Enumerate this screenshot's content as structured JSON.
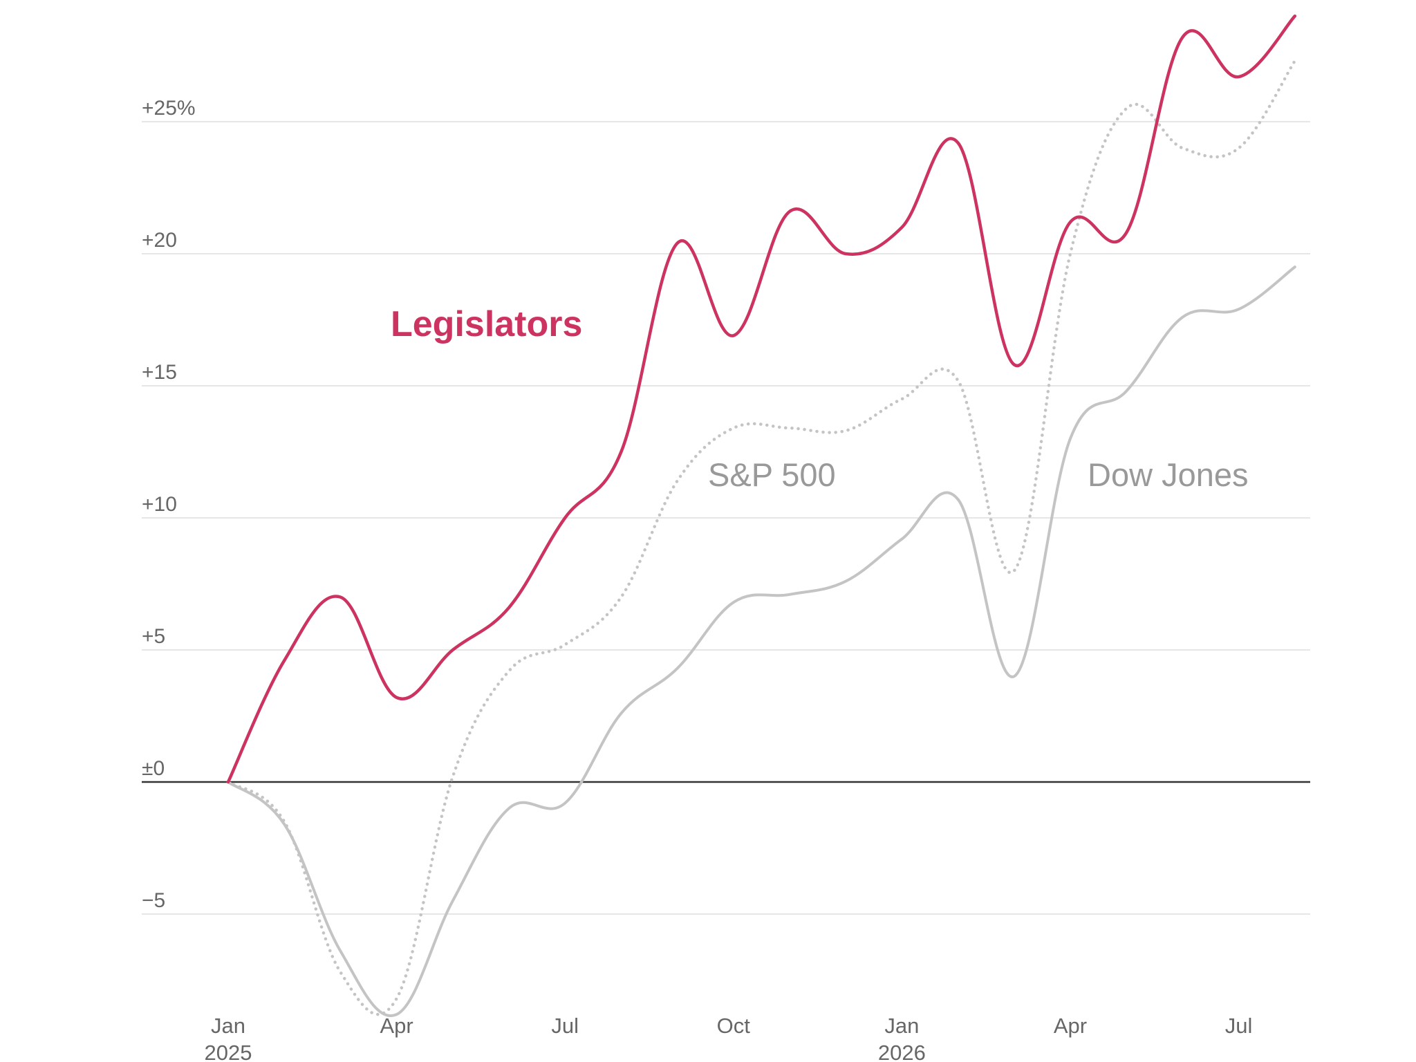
{
  "colors": {
    "legislators": "#cc3361",
    "sp500": "#c4c4c4",
    "dow": "#c4c4c4",
    "label_gray": "#999999",
    "gridline": "#e6e6e6",
    "zero_line": "#333333",
    "tick_text": "#666666"
  },
  "chart_data": {
    "type": "line",
    "title": "",
    "xlabel": "",
    "ylabel": "",
    "ylim": [
      -9,
      29
    ],
    "xlim": [
      "2025-01",
      "2026-08"
    ],
    "grid": true,
    "legend": "direct labels on lines",
    "y_ticks": [
      {
        "value": 25,
        "label": "+25%"
      },
      {
        "value": 20,
        "label": "+20"
      },
      {
        "value": 15,
        "label": "+15"
      },
      {
        "value": 10,
        "label": "+10"
      },
      {
        "value": 5,
        "label": "+5"
      },
      {
        "value": 0,
        "label": "±0"
      },
      {
        "value": -5,
        "label": "−5"
      }
    ],
    "x_ticks": [
      {
        "date": "2025-01",
        "label": "Jan",
        "sublabel": "2025"
      },
      {
        "date": "2025-04",
        "label": "Apr",
        "sublabel": ""
      },
      {
        "date": "2025-07",
        "label": "Jul",
        "sublabel": ""
      },
      {
        "date": "2025-10",
        "label": "Oct",
        "sublabel": ""
      },
      {
        "date": "2026-01",
        "label": "Jan",
        "sublabel": "2026"
      },
      {
        "date": "2026-04",
        "label": "Apr",
        "sublabel": ""
      },
      {
        "date": "2026-07",
        "label": "Jul",
        "sublabel": ""
      }
    ],
    "series": [
      {
        "name": "Legislators",
        "style": "solid",
        "color": "#cc3361",
        "points": [
          [
            "2025-01",
            0.0
          ],
          [
            "2025-02",
            4.6
          ],
          [
            "2025-03",
            7.0
          ],
          [
            "2025-04",
            3.2
          ],
          [
            "2025-05",
            5.0
          ],
          [
            "2025-06",
            6.6
          ],
          [
            "2025-07",
            10.0
          ],
          [
            "2025-08",
            12.5
          ],
          [
            "2025-09",
            20.4
          ],
          [
            "2025-10",
            16.9
          ],
          [
            "2025-11",
            21.6
          ],
          [
            "2025-12",
            20.0
          ],
          [
            "2026-01",
            21.0
          ],
          [
            "2026-02",
            24.2
          ],
          [
            "2026-03",
            15.8
          ],
          [
            "2026-04",
            21.2
          ],
          [
            "2026-05",
            20.8
          ],
          [
            "2026-06",
            28.2
          ],
          [
            "2026-07",
            26.7
          ],
          [
            "2026-08",
            29.0
          ]
        ]
      },
      {
        "name": "S&P 500",
        "style": "dotted",
        "color": "#c4c4c4",
        "points": [
          [
            "2025-01",
            0.0
          ],
          [
            "2025-02",
            -1.5
          ],
          [
            "2025-03",
            -7.2
          ],
          [
            "2025-04",
            -8.2
          ],
          [
            "2025-05",
            0.2
          ],
          [
            "2025-06",
            4.2
          ],
          [
            "2025-07",
            5.2
          ],
          [
            "2025-08",
            7.0
          ],
          [
            "2025-09",
            11.4
          ],
          [
            "2025-10",
            13.4
          ],
          [
            "2025-11",
            13.4
          ],
          [
            "2025-12",
            13.3
          ],
          [
            "2026-01",
            14.5
          ],
          [
            "2026-02",
            15.2
          ],
          [
            "2026-03",
            8.0
          ],
          [
            "2026-04",
            20.0
          ],
          [
            "2026-05",
            25.5
          ],
          [
            "2026-06",
            24.0
          ],
          [
            "2026-07",
            24.0
          ],
          [
            "2026-08",
            27.3
          ]
        ]
      },
      {
        "name": "Dow Jones",
        "style": "solid",
        "color": "#c4c4c4",
        "points": [
          [
            "2025-01",
            0.0
          ],
          [
            "2025-02",
            -1.6
          ],
          [
            "2025-03",
            -6.4
          ],
          [
            "2025-04",
            -8.8
          ],
          [
            "2025-05",
            -4.5
          ],
          [
            "2025-06",
            -1.0
          ],
          [
            "2025-07",
            -0.8
          ],
          [
            "2025-08",
            2.6
          ],
          [
            "2025-09",
            4.3
          ],
          [
            "2025-10",
            6.8
          ],
          [
            "2025-11",
            7.1
          ],
          [
            "2025-12",
            7.6
          ],
          [
            "2026-01",
            9.2
          ],
          [
            "2026-02",
            10.7
          ],
          [
            "2026-03",
            4.0
          ],
          [
            "2026-04",
            13.0
          ],
          [
            "2026-05",
            14.8
          ],
          [
            "2026-06",
            17.6
          ],
          [
            "2026-07",
            17.9
          ],
          [
            "2026-08",
            19.5
          ]
        ]
      }
    ],
    "annotations": [
      {
        "text": "Legislators",
        "series": "Legislators",
        "anchor": [
          "2025-05",
          17.2
        ],
        "weight": "bold",
        "color": "#cc3361"
      },
      {
        "text": "S&P 500",
        "series": "S&P 500",
        "anchor": [
          "2025-10",
          11.0
        ],
        "weight": "normal",
        "color": "#999999"
      },
      {
        "text": "Dow Jones",
        "series": "Dow Jones",
        "anchor": [
          "2026-06",
          11.0
        ],
        "weight": "normal",
        "color": "#999999"
      }
    ]
  }
}
